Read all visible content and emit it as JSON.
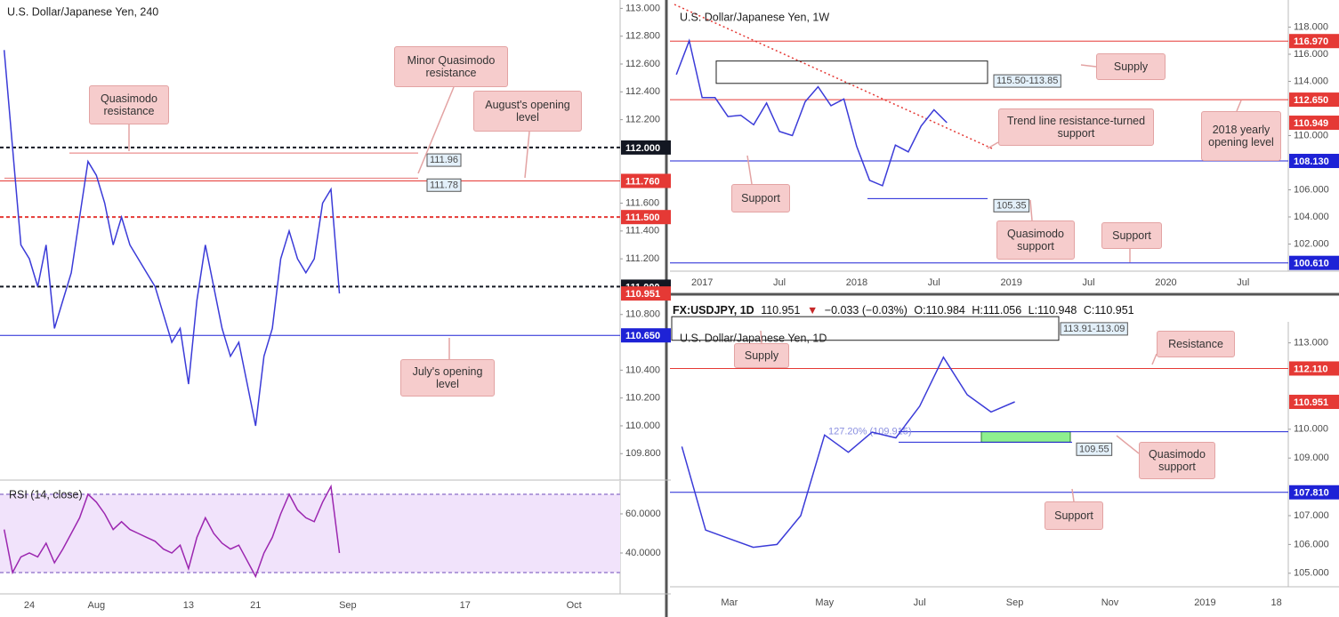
{
  "header": {
    "symbol": "FX:USDJPY, 1D",
    "last": "110.951",
    "arrow": "▼",
    "change": "−0.033 (−0.03%)",
    "open": "O:110.984",
    "high": "H:111.056",
    "low": "L:110.948",
    "close": "C:110.951"
  },
  "chart_data": [
    {
      "type": "line",
      "title": "U.S. Dollar/Japanese Yen, 240",
      "color": "#3b3bd8",
      "categories": [
        null,
        null,
        null,
        "24",
        null,
        null,
        null,
        null,
        null,
        null,
        null,
        "Aug",
        null,
        null,
        null,
        null,
        null,
        null,
        null,
        null,
        null,
        null,
        "13",
        null,
        null,
        null,
        null,
        null,
        null,
        null,
        "21",
        null,
        null,
        null,
        null,
        null,
        null,
        null,
        null,
        null,
        null,
        "Sep",
        null,
        null,
        null,
        null,
        null,
        null,
        null,
        null,
        null,
        null,
        null,
        null,
        null,
        "17",
        null,
        null,
        null,
        null,
        null,
        null,
        null,
        null,
        null,
        null,
        null,
        null,
        "Oct",
        null,
        null,
        null,
        null,
        null
      ],
      "values": [
        112.7,
        112.0,
        111.3,
        111.2,
        111.0,
        111.3,
        110.7,
        110.9,
        111.1,
        111.5,
        111.9,
        111.8,
        111.6,
        111.3,
        111.5,
        111.3,
        111.2,
        111.1,
        111.0,
        110.8,
        110.6,
        110.7,
        110.3,
        110.9,
        111.3,
        111.0,
        110.7,
        110.5,
        110.6,
        110.3,
        110.0,
        110.5,
        110.7,
        111.2,
        111.4,
        111.2,
        111.1,
        111.2,
        111.6,
        111.7,
        110.951,
        null,
        null,
        null,
        null,
        null,
        null,
        null,
        null,
        null,
        null,
        null,
        null,
        null,
        null,
        null,
        null,
        null,
        null,
        null,
        null,
        null,
        null,
        null,
        null,
        null,
        null,
        null,
        null,
        null,
        null,
        null,
        null,
        null
      ],
      "ylim": [
        109.61,
        113.06
      ],
      "yticks": [
        {
          "value": 113,
          "label": "113.000"
        },
        {
          "value": 112.8,
          "label": "112.800"
        },
        {
          "value": 112.6,
          "label": "112.600"
        },
        {
          "value": 112.4,
          "label": "112.400"
        },
        {
          "value": 112.2,
          "label": "112.200"
        },
        {
          "value": 111.6,
          "label": "111.600"
        },
        {
          "value": 111.4,
          "label": "111.400"
        },
        {
          "value": 111.2,
          "label": "111.200"
        },
        {
          "value": 110.8,
          "label": "110.800"
        },
        {
          "value": 110.4,
          "label": "110.400"
        },
        {
          "value": 110.2,
          "label": "110.200"
        },
        {
          "value": 110,
          "label": "110.000"
        },
        {
          "value": 109.8,
          "label": "109.800"
        }
      ],
      "levels": [
        {
          "value": 112,
          "label": "112.000",
          "color": "#131722",
          "style": "dashed"
        },
        {
          "value": 111.76,
          "label": "111.760",
          "color": "#e53935",
          "style": "solid"
        },
        {
          "value": 111.5,
          "label": "111.500",
          "color": "#e53935",
          "style": "dashed"
        },
        {
          "value": 111,
          "label": "111.000",
          "color": "#131722",
          "style": "dashed"
        },
        {
          "value": 110.951,
          "label": "110.951",
          "color": "#e53935",
          "style": "none"
        },
        {
          "value": 110.65,
          "label": "110.650",
          "color": "#1e22d6",
          "style": "solid"
        }
      ],
      "markers": [
        {
          "value": 111.96,
          "label": "111.96",
          "color": "#e57373"
        },
        {
          "value": 111.78,
          "label": "111.78",
          "color": "#e57373"
        }
      ],
      "annotations": [
        "Quasimodo resistance",
        "Minor Quasimodo resistance",
        "August's opening level",
        "July's opening level"
      ]
    },
    {
      "type": "line",
      "title": "RSI (14, close)",
      "color": "#9c27b0",
      "values": [
        52,
        30,
        38,
        40,
        38,
        45,
        35,
        42,
        50,
        58,
        70,
        66,
        60,
        52,
        56,
        52,
        50,
        48,
        46,
        42,
        40,
        44,
        32,
        48,
        58,
        50,
        45,
        42,
        44,
        36,
        28,
        40,
        48,
        60,
        70,
        62,
        58,
        56,
        66,
        74,
        40,
        null,
        null,
        null,
        null,
        null,
        null,
        null,
        null,
        null,
        null,
        null,
        null,
        null,
        null,
        null,
        null,
        null,
        null,
        null,
        null,
        null,
        null,
        null,
        null,
        null,
        null,
        null,
        null,
        null,
        null,
        null,
        null,
        null
      ],
      "ylim": [
        19.1,
        76.8
      ],
      "yticks": [
        {
          "value": 60,
          "label": "60.0000"
        },
        {
          "value": 40,
          "label": "40.0000"
        }
      ],
      "levels": [
        {
          "value": 70,
          "color": "#b39ddb",
          "style": "dashed"
        },
        {
          "value": 30,
          "color": "#b39ddb",
          "style": "dashed"
        }
      ],
      "band": [
        30,
        70
      ]
    },
    {
      "type": "line",
      "title": "U.S. Dollar/Japanese Yen, 1W",
      "color": "#3b3bd8",
      "categories": [
        null,
        null,
        "2017",
        null,
        null,
        null,
        null,
        null,
        "Jul",
        null,
        null,
        null,
        null,
        null,
        "2018",
        null,
        null,
        null,
        null,
        null,
        "Jul",
        null,
        null,
        null,
        null,
        null,
        "2019",
        null,
        null,
        null,
        null,
        null,
        "Jul",
        null,
        null,
        null,
        null,
        null,
        "2020",
        null,
        null,
        null,
        null,
        null,
        "Jul",
        null,
        null,
        null
      ],
      "values": [
        114.5,
        117.0,
        112.8,
        112.8,
        111.4,
        111.5,
        110.8,
        112.4,
        110.3,
        110.0,
        112.5,
        113.6,
        112.2,
        112.7,
        109.2,
        106.7,
        106.3,
        109.3,
        108.8,
        110.7,
        111.9,
        110.949,
        null,
        null,
        null,
        null,
        null,
        null,
        null,
        null,
        null,
        null,
        null,
        null,
        null,
        null,
        null,
        null,
        null,
        null,
        null,
        null,
        null,
        null,
        null,
        null,
        null,
        null
      ],
      "ylim": [
        100,
        120
      ],
      "yticks": [
        {
          "value": 118,
          "label": "118.000"
        },
        {
          "value": 116,
          "label": "116.000"
        },
        {
          "value": 114,
          "label": "114.000"
        },
        {
          "value": 110,
          "label": "110.000"
        },
        {
          "value": 106,
          "label": "106.000"
        },
        {
          "value": 104,
          "label": "104.000"
        },
        {
          "value": 102,
          "label": "102.000"
        }
      ],
      "levels": [
        {
          "value": 116.97,
          "label": "116.970",
          "color": "#e53935",
          "style": "solid"
        },
        {
          "value": 112.65,
          "label": "112.650",
          "color": "#e53935",
          "style": "solid"
        },
        {
          "value": 110.949,
          "label": "110.949",
          "color": "#e53935",
          "style": "none"
        },
        {
          "value": 108.13,
          "label": "108.130",
          "color": "#1e22d6",
          "style": "solid"
        },
        {
          "value": 100.61,
          "label": "100.610",
          "color": "#1e22d6",
          "style": "solid"
        }
      ],
      "zones": [
        {
          "low": 113.85,
          "high": 115.5,
          "label": "115.50-113.85",
          "color": "none"
        }
      ],
      "markers": [
        {
          "value": 105.35,
          "label": "105.35",
          "color": "#1e22d6"
        }
      ],
      "annotations": [
        "Supply",
        "Trend line resistance-turned support",
        "2018 yearly opening level",
        "Support",
        "Quasimodo support",
        "Support"
      ]
    },
    {
      "type": "line",
      "title": "U.S. Dollar/Japanese Yen, 1D",
      "color": "#3b3bd8",
      "categories": [
        null,
        null,
        "Mar",
        null,
        null,
        null,
        "May",
        null,
        null,
        null,
        "Jul",
        null,
        null,
        null,
        "Sep",
        null,
        null,
        null,
        "Nov",
        null,
        null,
        null,
        "2019",
        null,
        null,
        "18"
      ],
      "values": [
        109.4,
        106.5,
        106.2,
        105.9,
        106.0,
        107.0,
        109.8,
        109.2,
        109.9,
        109.7,
        110.8,
        112.5,
        111.2,
        110.6,
        110.951,
        null,
        null,
        null,
        null,
        null,
        null,
        null,
        null,
        null,
        null,
        null
      ],
      "ylim": [
        104.53,
        113.73
      ],
      "yticks": [
        {
          "value": 113,
          "label": "113.000"
        },
        {
          "value": 110,
          "label": "110.000"
        },
        {
          "value": 109,
          "label": "109.000"
        },
        {
          "value": 107,
          "label": "107.000"
        },
        {
          "value": 106,
          "label": "106.000"
        },
        {
          "value": 105,
          "label": "105.000"
        }
      ],
      "levels": [
        {
          "value": 112.11,
          "label": "112.110",
          "color": "#e53935",
          "style": "solid"
        },
        {
          "value": 110.951,
          "label": "110.951",
          "color": "#e53935",
          "style": "none"
        },
        {
          "value": 107.81,
          "label": "107.810",
          "color": "#1e22d6",
          "style": "solid"
        }
      ],
      "zones": [
        {
          "low": 113.09,
          "high": 113.91,
          "label": "113.91-113.09",
          "color": "none"
        },
        {
          "low": 109.55,
          "high": 109.915,
          "color": "#8ef08e"
        }
      ],
      "markers": [
        {
          "value": 109.55,
          "label": "109.55",
          "color": "#1e22d6"
        },
        {
          "value": 109.915,
          "label": "127.20% (109.915)",
          "color": "#1e22d6"
        }
      ],
      "annotations": [
        "Supply",
        "Resistance",
        "Quasimodo support",
        "Support"
      ]
    }
  ]
}
